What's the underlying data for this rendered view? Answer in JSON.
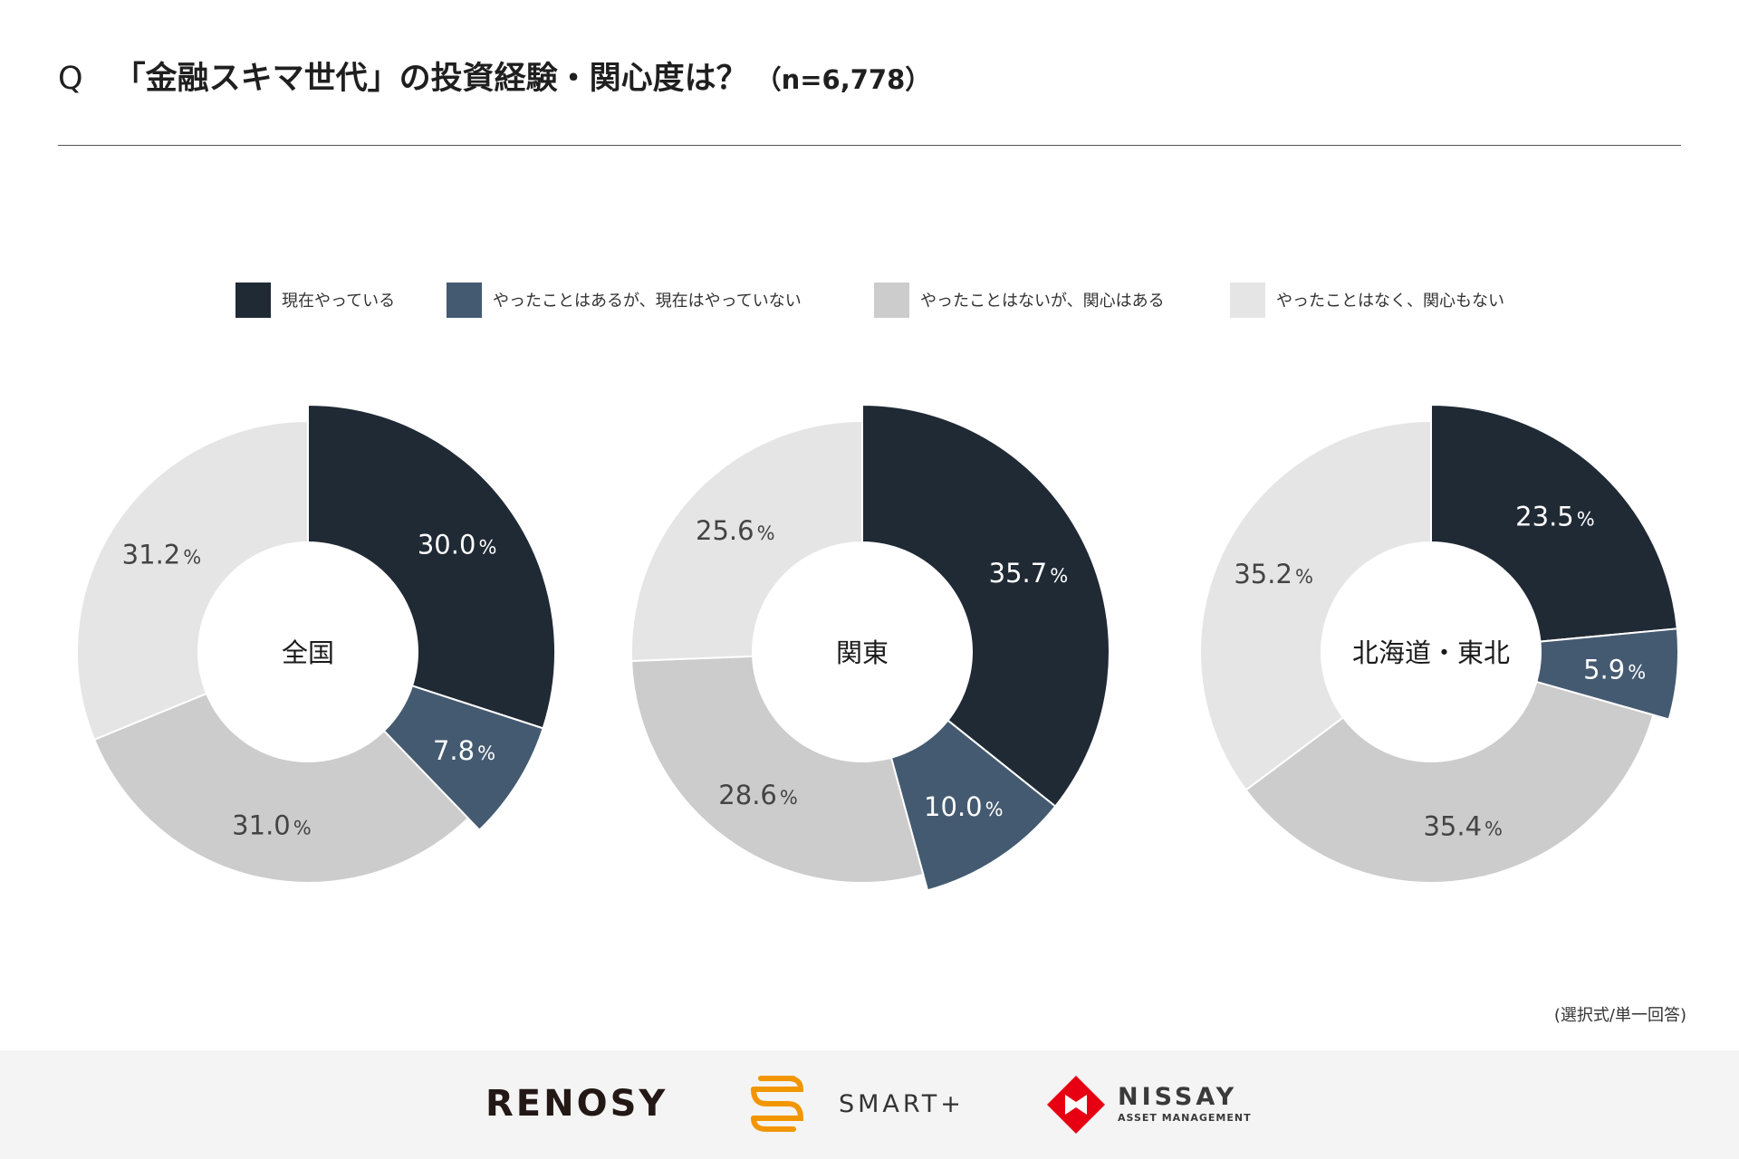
{
  "header": {
    "q_mark": "Q",
    "title": "「金融スキマ世代」の投資経験・関心度は？",
    "sample": "（n=6,778）"
  },
  "colors": {
    "current": "#202a35",
    "past": "#445a71",
    "interested": "#cccccc",
    "not_interested": "#e5e5e5"
  },
  "legend": [
    {
      "label": "現在やっている",
      "color": "#202a35"
    },
    {
      "label": "やったことはあるが、現在はやっていない",
      "color": "#445a71"
    },
    {
      "label": "やったことはないが、関心はある",
      "color": "#cccccc"
    },
    {
      "label": "やったことはなく、関心もない",
      "color": "#e5e5e5"
    }
  ],
  "chart_data": [
    {
      "type": "pie",
      "title": "全国",
      "categories": [
        "現在やっている",
        "やったことはあるが、現在はやっていない",
        "やったことはないが、関心はある",
        "やったことはなく、関心もない"
      ],
      "values": [
        30.0,
        7.8,
        31.0,
        31.2
      ],
      "labels": [
        "30.0",
        "7.8",
        "31.0",
        "31.2"
      ],
      "unit": "%"
    },
    {
      "type": "pie",
      "title": "関東",
      "categories": [
        "現在やっている",
        "やったことはあるが、現在はやっていない",
        "やったことはないが、関心はある",
        "やったことはなく、関心もない"
      ],
      "values": [
        35.7,
        10.0,
        28.6,
        25.6
      ],
      "labels": [
        "35.7",
        "10.0",
        "28.6",
        "25.6"
      ],
      "unit": "%"
    },
    {
      "type": "pie",
      "title": "北海道・東北",
      "categories": [
        "現在やっている",
        "やったことはあるが、現在はやっていない",
        "やったことはないが、関心はある",
        "やったことはなく、関心もない"
      ],
      "values": [
        23.5,
        5.9,
        35.4,
        35.2
      ],
      "labels": [
        "23.5",
        "5.9",
        "35.4",
        "35.2"
      ],
      "unit": "%"
    }
  ],
  "note": "(選択式/単一回答)",
  "footer": {
    "logo_renosy": "RENOSY",
    "logo_smart": "SMART+",
    "logo_nissay": "NISSAY",
    "logo_nissay_sub": "ASSET MANAGEMENT"
  }
}
